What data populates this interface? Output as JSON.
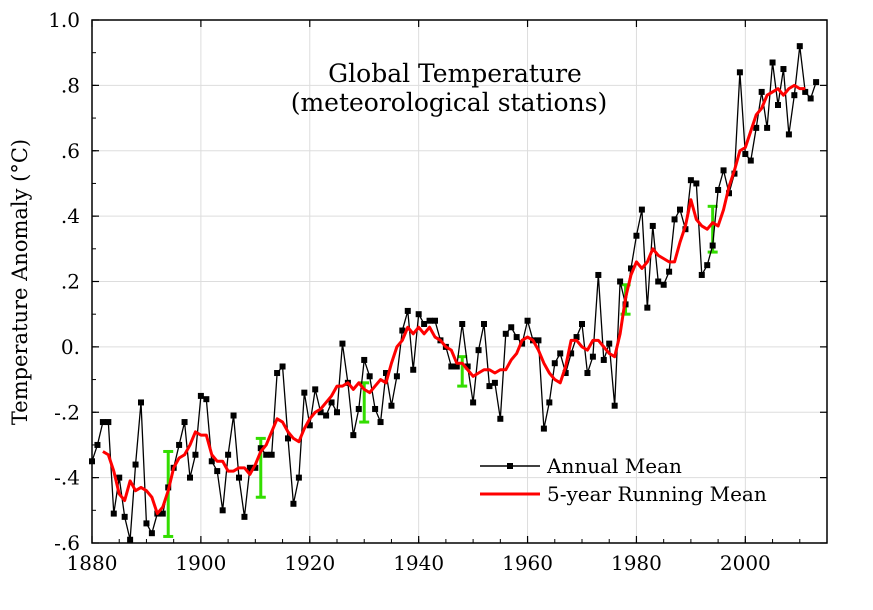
{
  "chart_data": {
    "type": "line",
    "title": "Global Temperature",
    "subtitle": "(meteorological stations)",
    "xlabel": "",
    "ylabel": "Temperature Anomaly (°C)",
    "xlim": [
      1880,
      2015
    ],
    "ylim": [
      -0.6,
      1.0
    ],
    "xticks": [
      1880,
      1900,
      1920,
      1940,
      1960,
      1980,
      2000
    ],
    "xtick_labels": [
      "1880",
      "1900",
      "1920",
      "1940",
      "1960",
      "1980",
      "2000"
    ],
    "yticks": [
      -0.6,
      -0.4,
      -0.2,
      0.0,
      0.2,
      0.4,
      0.6,
      0.8,
      1.0
    ],
    "ytick_labels": [
      "-.6",
      "-.4",
      "-.2",
      "0.",
      ".2",
      ".4",
      ".6",
      ".8",
      "1.0"
    ],
    "grid": true,
    "legend": "bottom-right",
    "series": [
      {
        "name": "Annual Mean",
        "color": "#000000",
        "marker": "square",
        "x": [
          1880,
          1881,
          1882,
          1883,
          1884,
          1885,
          1886,
          1887,
          1888,
          1889,
          1890,
          1891,
          1892,
          1893,
          1894,
          1895,
          1896,
          1897,
          1898,
          1899,
          1900,
          1901,
          1902,
          1903,
          1904,
          1905,
          1906,
          1907,
          1908,
          1909,
          1910,
          1911,
          1912,
          1913,
          1914,
          1915,
          1916,
          1917,
          1918,
          1919,
          1920,
          1921,
          1922,
          1923,
          1924,
          1925,
          1926,
          1927,
          1928,
          1929,
          1930,
          1931,
          1932,
          1933,
          1934,
          1935,
          1936,
          1937,
          1938,
          1939,
          1940,
          1941,
          1942,
          1943,
          1944,
          1945,
          1946,
          1947,
          1948,
          1949,
          1950,
          1951,
          1952,
          1953,
          1954,
          1955,
          1956,
          1957,
          1958,
          1959,
          1960,
          1961,
          1962,
          1963,
          1964,
          1965,
          1966,
          1967,
          1968,
          1969,
          1970,
          1971,
          1972,
          1973,
          1974,
          1975,
          1976,
          1977,
          1978,
          1979,
          1980,
          1981,
          1982,
          1983,
          1984,
          1985,
          1986,
          1987,
          1988,
          1989,
          1990,
          1991,
          1992,
          1993,
          1994,
          1995,
          1996,
          1997,
          1998,
          1999,
          2000,
          2001,
          2002,
          2003,
          2004,
          2005,
          2006,
          2007,
          2008,
          2009,
          2010,
          2011,
          2012,
          2013
        ],
        "values": [
          -0.35,
          -0.3,
          -0.23,
          -0.23,
          -0.51,
          -0.4,
          -0.52,
          -0.59,
          -0.36,
          -0.17,
          -0.54,
          -0.57,
          -0.51,
          -0.51,
          -0.43,
          -0.37,
          -0.3,
          -0.23,
          -0.4,
          -0.33,
          -0.15,
          -0.16,
          -0.35,
          -0.38,
          -0.5,
          -0.33,
          -0.21,
          -0.4,
          -0.52,
          -0.37,
          -0.37,
          -0.31,
          -0.33,
          -0.33,
          -0.08,
          -0.06,
          -0.28,
          -0.48,
          -0.4,
          -0.14,
          -0.24,
          -0.13,
          -0.2,
          -0.21,
          -0.17,
          -0.2,
          0.01,
          -0.11,
          -0.27,
          -0.19,
          -0.04,
          -0.09,
          -0.19,
          -0.23,
          -0.08,
          -0.18,
          -0.09,
          0.05,
          0.11,
          -0.07,
          0.1,
          0.07,
          0.08,
          0.08,
          0.02,
          0.0,
          -0.06,
          -0.06,
          0.07,
          -0.06,
          -0.17,
          -0.01,
          0.07,
          -0.12,
          -0.11,
          -0.22,
          0.04,
          0.06,
          0.03,
          0.01,
          0.08,
          0.02,
          0.02,
          -0.25,
          -0.17,
          -0.05,
          -0.02,
          -0.08,
          -0.02,
          0.03,
          0.07,
          -0.08,
          -0.03,
          0.22,
          -0.04,
          0.01,
          -0.18,
          0.2,
          0.13,
          0.24,
          0.34,
          0.42,
          0.12,
          0.37,
          0.2,
          0.19,
          0.23,
          0.39,
          0.42,
          0.36,
          0.51,
          0.5,
          0.22,
          0.25,
          0.31,
          0.48,
          0.54,
          0.47,
          0.53,
          0.84,
          0.59,
          0.57,
          0.67,
          0.78,
          0.67,
          0.87,
          0.74,
          0.85,
          0.65,
          0.77,
          0.92,
          0.78,
          0.76,
          0.81
        ]
      },
      {
        "name": "5-year Running Mean",
        "color": "#ff0000",
        "x": [
          1882,
          1883,
          1884,
          1885,
          1886,
          1887,
          1888,
          1889,
          1890,
          1891,
          1892,
          1893,
          1894,
          1895,
          1896,
          1897,
          1898,
          1899,
          1900,
          1901,
          1902,
          1903,
          1904,
          1905,
          1906,
          1907,
          1908,
          1909,
          1910,
          1911,
          1912,
          1913,
          1914,
          1915,
          1916,
          1917,
          1918,
          1919,
          1920,
          1921,
          1922,
          1923,
          1924,
          1925,
          1926,
          1927,
          1928,
          1929,
          1930,
          1931,
          1932,
          1933,
          1934,
          1935,
          1936,
          1937,
          1938,
          1939,
          1940,
          1941,
          1942,
          1943,
          1944,
          1945,
          1946,
          1947,
          1948,
          1949,
          1950,
          1951,
          1952,
          1953,
          1954,
          1955,
          1956,
          1957,
          1958,
          1959,
          1960,
          1961,
          1962,
          1963,
          1964,
          1965,
          1966,
          1967,
          1968,
          1969,
          1970,
          1971,
          1972,
          1973,
          1974,
          1975,
          1976,
          1977,
          1978,
          1979,
          1980,
          1981,
          1982,
          1983,
          1984,
          1985,
          1986,
          1987,
          1988,
          1989,
          1990,
          1991,
          1992,
          1993,
          1994,
          1995,
          1996,
          1997,
          1998,
          1999,
          2000,
          2001,
          2002,
          2003,
          2004,
          2005,
          2006,
          2007,
          2008,
          2009,
          2010,
          2011
        ],
        "values": [
          -0.32,
          -0.33,
          -0.38,
          -0.45,
          -0.47,
          -0.41,
          -0.44,
          -0.43,
          -0.44,
          -0.46,
          -0.51,
          -0.49,
          -0.44,
          -0.37,
          -0.34,
          -0.33,
          -0.3,
          -0.26,
          -0.27,
          -0.27,
          -0.33,
          -0.35,
          -0.35,
          -0.38,
          -0.38,
          -0.37,
          -0.37,
          -0.39,
          -0.36,
          -0.32,
          -0.3,
          -0.26,
          -0.22,
          -0.23,
          -0.26,
          -0.28,
          -0.29,
          -0.25,
          -0.22,
          -0.2,
          -0.19,
          -0.17,
          -0.15,
          -0.12,
          -0.12,
          -0.11,
          -0.13,
          -0.11,
          -0.13,
          -0.14,
          -0.12,
          -0.1,
          -0.11,
          -0.05,
          0.0,
          0.02,
          0.06,
          0.04,
          0.06,
          0.04,
          0.06,
          0.03,
          0.02,
          0.0,
          -0.01,
          -0.05,
          -0.05,
          -0.07,
          -0.09,
          -0.08,
          -0.07,
          -0.07,
          -0.08,
          -0.07,
          -0.07,
          -0.04,
          -0.02,
          0.02,
          0.03,
          0.02,
          -0.01,
          -0.05,
          -0.08,
          -0.1,
          -0.11,
          -0.06,
          0.02,
          0.02,
          0.0,
          -0.01,
          0.02,
          0.02,
          0.0,
          -0.02,
          -0.03,
          0.04,
          0.15,
          0.22,
          0.26,
          0.24,
          0.26,
          0.3,
          0.28,
          0.27,
          0.26,
          0.26,
          0.32,
          0.37,
          0.45,
          0.39,
          0.37,
          0.36,
          0.38,
          0.37,
          0.42,
          0.49,
          0.54,
          0.6,
          0.61,
          0.66,
          0.71,
          0.73,
          0.77,
          0.78,
          0.79,
          0.77,
          0.79,
          0.8,
          0.79,
          0.79
        ]
      }
    ],
    "error_bars": {
      "color": "#33dd00",
      "items": [
        {
          "x": 1894,
          "low": -0.58,
          "high": -0.32
        },
        {
          "x": 1911,
          "low": -0.46,
          "high": -0.28
        },
        {
          "x": 1930,
          "low": -0.23,
          "high": -0.11
        },
        {
          "x": 1948,
          "low": -0.12,
          "high": -0.03
        },
        {
          "x": 1978,
          "low": 0.1,
          "high": 0.19
        },
        {
          "x": 1994,
          "low": 0.29,
          "high": 0.43
        }
      ]
    }
  }
}
